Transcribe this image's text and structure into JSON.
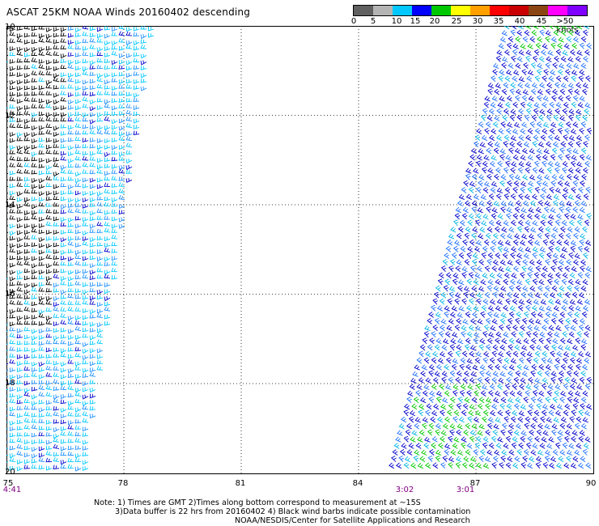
{
  "title": "ASCAT 25KM NOAA Winds 20160402 descending",
  "legend": {
    "colors": [
      "#606060",
      "#b4b4b4",
      "#00c8ff",
      "#0000ff",
      "#00c800",
      "#ffff00",
      "#ffa000",
      "#ff0000",
      "#c80000",
      "#8b4513",
      "#ff00ff",
      "#8000ff"
    ],
    "labels": [
      "0",
      "5",
      "10",
      "15",
      "20",
      "25",
      "30",
      "35",
      "40",
      "45",
      ">50 knots"
    ]
  },
  "map": {
    "lat_labels": [
      "10",
      "12",
      "14",
      "16",
      "18",
      "20"
    ],
    "lon_labels": [
      "75",
      "78",
      "81",
      "84",
      "87",
      "90"
    ],
    "pass_times": [
      {
        "label": "4:41",
        "lon": "75"
      },
      {
        "label": "3:02",
        "lon": "84.9"
      },
      {
        "label": "3:01",
        "lon": "86.5"
      }
    ]
  },
  "notes": {
    "line1": "Note: 1) Times are GMT 2)Times along bottom correspond to measurement at ~15S",
    "line2": "3)Data buffer is 22 hrs from 20160402 4) Black wind barbs indicate possible contamination",
    "line3": "NOAA/NESDIS/Center for Satellite Applications and Research"
  }
}
